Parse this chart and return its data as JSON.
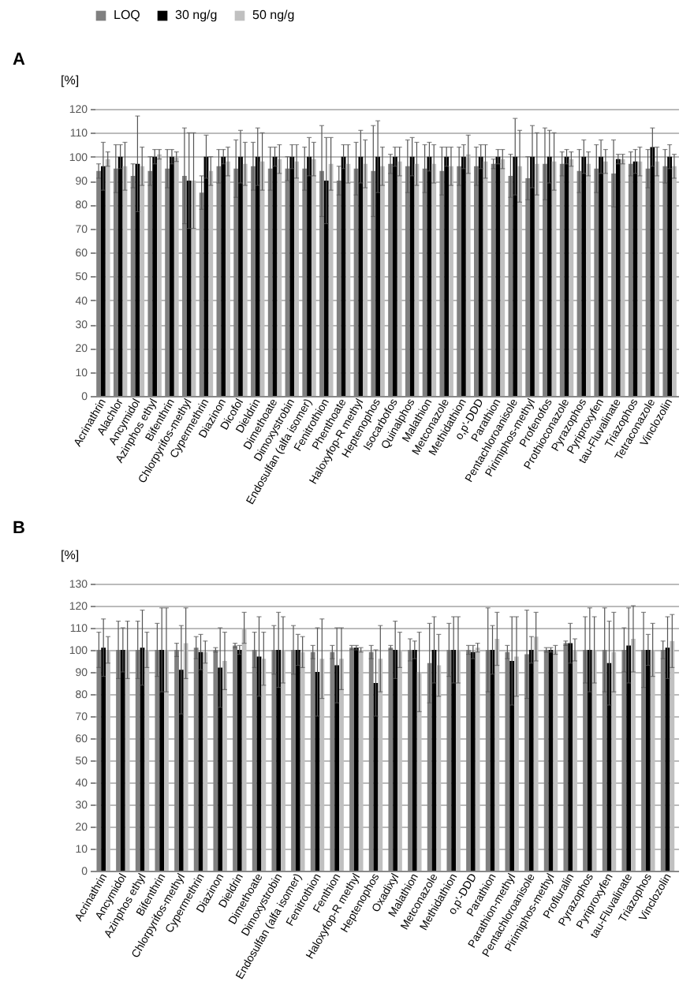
{
  "chart_data": [
    {
      "type": "bar",
      "title": "A",
      "ylabel": "[%]",
      "legend": "top",
      "grid": "y",
      "ylim": [
        0,
        120
      ],
      "yticks": [
        0,
        10,
        20,
        30,
        40,
        50,
        60,
        70,
        80,
        90,
        100,
        110,
        120
      ],
      "categories": [
        "Acrinathrin",
        "Alachlor",
        "Ancymidol",
        "Azinphos ethyl",
        "Bifenthrin",
        "Chlorpyrifos-methyl",
        "Cypermethrin",
        "Diazinon",
        "Dicofol",
        "Dieldrin",
        "Dimethoate",
        "Dimoxystrobin",
        "Endosulfan (alfa isomer)",
        "Fenitrothion",
        "Phenthoate",
        "Haloxyfop-R methyl",
        "Heptenophos",
        "Isocarbofos",
        "Quinalphos",
        "Malathion",
        "Metconazole",
        "Methidathion",
        "o,p'-DDD",
        "Parathion",
        "Pentachloroanisole",
        "Pirimiphos-methyl",
        "Profenofos",
        "Prothioconazole",
        "Pyrazophos",
        "Pyriproxyfen",
        "tau-Fluvalinate",
        "Triazophos",
        "Tetraconazole",
        "Vinclozolin"
      ],
      "series": [
        {
          "name": "LOQ",
          "color": "#808080",
          "values": [
            94,
            95,
            92,
            94,
            95,
            92,
            85,
            96,
            95,
            96,
            95,
            95,
            95,
            94,
            90,
            95,
            94,
            97,
            96,
            95,
            94,
            96,
            96,
            97,
            92,
            91,
            97,
            97,
            94,
            95,
            93,
            97,
            95,
            96
          ],
          "errors": [
            3,
            10,
            5,
            6,
            8,
            20,
            7,
            7,
            12,
            10,
            9,
            5,
            9,
            19,
            6,
            11,
            19,
            4,
            11,
            10,
            10,
            8,
            8,
            2,
            9,
            9,
            15,
            5,
            9,
            10,
            14,
            5,
            8,
            7
          ]
        },
        {
          "name": "30 ng/g",
          "color": "#000000",
          "values": [
            96,
            100,
            97,
            100,
            100,
            90,
            100,
            100,
            100,
            100,
            100,
            100,
            100,
            90,
            100,
            100,
            100,
            100,
            100,
            100,
            100,
            100,
            100,
            100,
            100,
            100,
            100,
            100,
            100,
            100,
            99,
            98,
            104,
            100
          ],
          "errors": [
            10,
            5,
            20,
            3,
            3,
            20,
            9,
            3,
            11,
            12,
            4,
            5,
            8,
            18,
            5,
            11,
            15,
            4,
            8,
            6,
            4,
            5,
            5,
            3,
            16,
            13,
            11,
            3,
            7,
            7,
            2,
            5,
            8,
            5
          ]
        },
        {
          "name": "50 ng/g",
          "color": "#c0c0c0",
          "values": [
            99,
            96,
            96,
            101,
            100,
            90,
            94,
            98,
            97,
            98,
            99,
            98,
            99,
            97,
            97,
            97,
            96,
            98,
            97,
            97,
            96,
            101,
            98,
            99,
            96,
            97,
            98,
            99,
            97,
            98,
            99,
            98,
            98,
            96
          ],
          "errors": [
            3,
            10,
            8,
            2,
            2,
            20,
            6,
            6,
            9,
            12,
            6,
            7,
            7,
            11,
            8,
            10,
            8,
            6,
            9,
            8,
            8,
            8,
            7,
            4,
            15,
            13,
            12,
            3,
            5,
            5,
            2,
            6,
            6,
            5
          ]
        }
      ]
    },
    {
      "type": "bar",
      "title": "B",
      "ylabel": "[%]",
      "grid": "y",
      "ylim": [
        0,
        130
      ],
      "yticks": [
        0,
        10,
        20,
        30,
        40,
        50,
        60,
        70,
        80,
        90,
        100,
        110,
        120,
        130
      ],
      "categories": [
        "Acrinathrin",
        "Ancymidol",
        "Azinphos ethyl",
        "Bifenthrin",
        "Chlorpyrifos-methyl",
        "Cypermethrin",
        "Diazinon",
        "Dieldrin",
        "Dimethoate",
        "Dimoxystrobin",
        "Endosulfan (alfa isomer)",
        "Fenitrothion",
        "Fenthion",
        "Haloxyfop-R methyl",
        "Heptenophos",
        "Oxadixyl",
        "Malathion",
        "Metconazole",
        "Methidathion",
        "o,p'-DDD",
        "Parathion",
        "Parathion-methyl",
        "Pentachloroanisole",
        "Pirimiphos-methyl",
        "Profluralin",
        "Pyrazophos",
        "Pyriproxyfen",
        "tau-Fluvalinate",
        "Triazophos",
        "Vinclozolin"
      ],
      "series": [
        {
          "color": "#808080",
          "values": [
            100,
            100,
            100,
            100,
            100,
            101,
            100,
            102,
            100,
            100,
            100,
            99,
            99,
            101,
            99,
            101,
            100,
            94,
            100,
            100,
            100,
            99,
            98,
            100,
            103,
            100,
            100,
            100,
            100,
            100
          ],
          "errors": [
            8,
            13,
            13,
            12,
            3,
            5,
            1,
            1,
            8,
            11,
            11,
            3,
            3,
            1,
            3,
            1,
            5,
            18,
            12,
            2,
            19,
            3,
            20,
            1,
            1,
            15,
            19,
            10,
            17,
            4
          ]
        },
        {
          "color": "#000000",
          "values": [
            101,
            100,
            101,
            100,
            91,
            99,
            92,
            100,
            97,
            100,
            100,
            90,
            93,
            101,
            85,
            100,
            100,
            100,
            100,
            99,
            100,
            95,
            100,
            100,
            103,
            100,
            94,
            102,
            100,
            101
          ],
          "errors": [
            13,
            10,
            17,
            19,
            20,
            8,
            18,
            2,
            18,
            17,
            7,
            20,
            17,
            1,
            15,
            13,
            4,
            15,
            15,
            3,
            11,
            20,
            6,
            1,
            9,
            19,
            19,
            17,
            7,
            14
          ]
        },
        {
          "color": "#c0c0c0",
          "values": [
            100,
            100,
            100,
            100,
            103,
            99,
            95,
            110,
            96,
            100,
            99,
            96,
            96,
            100,
            96,
            100,
            90,
            93,
            100,
            101,
            105,
            97,
            106,
            100,
            100,
            100,
            99,
            105,
            100,
            104
          ],
          "errors": [
            6,
            13,
            8,
            19,
            16,
            5,
            13,
            7,
            12,
            15,
            7,
            18,
            14,
            1,
            15,
            8,
            18,
            14,
            15,
            2,
            12,
            18,
            11,
            2,
            5,
            15,
            18,
            15,
            12,
            12
          ]
        }
      ]
    }
  ]
}
